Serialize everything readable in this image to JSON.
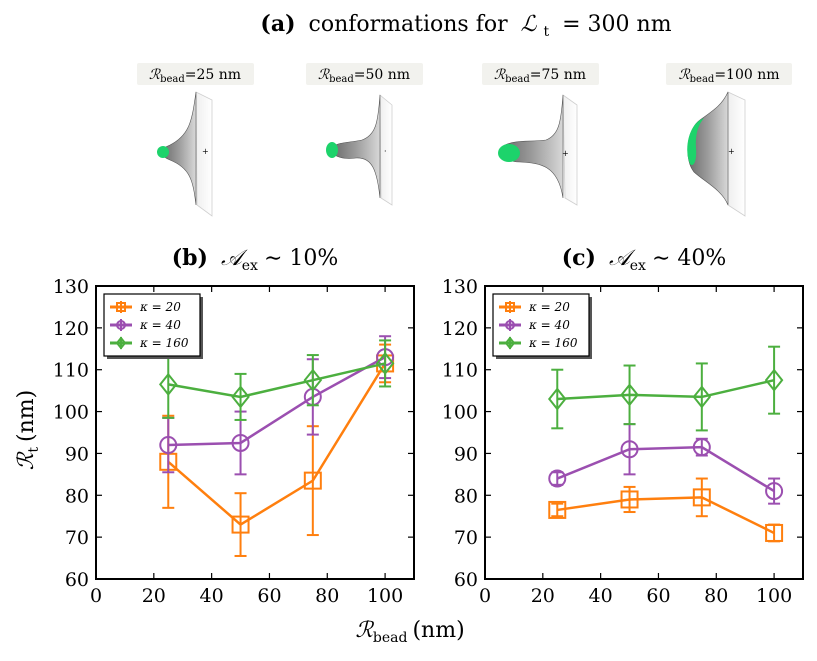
{
  "figure": {
    "panel_a": {
      "title_bold": "(a)",
      "title_rest": "conformations for",
      "title_math": "ℒ",
      "title_sub": "t",
      "title_value": "= 300 nm",
      "conformations": [
        {
          "label": "ℛ",
          "sub": "bead",
          "value": "=25 nm"
        },
        {
          "label": "ℛ",
          "sub": "bead",
          "value": "=50 nm"
        },
        {
          "label": "ℛ",
          "sub": "bead",
          "value": "=75 nm"
        },
        {
          "label": "ℛ",
          "sub": "bead",
          "value": "=100 nm"
        }
      ]
    },
    "ylabel_main": "ℛ",
    "ylabel_sub": "t",
    "ylabel_unit": "(nm)",
    "xlabel_main": "ℛ",
    "xlabel_sub": "bead",
    "xlabel_unit": "(nm)"
  },
  "colors": {
    "k20": "#ff7f0e",
    "k40": "#9b4fb0",
    "k160": "#4caf3f",
    "green_cap": "#1dd36b"
  },
  "chart_data": [
    {
      "type": "line",
      "panel": "b",
      "title_bold": "(b)",
      "title_math": "𝒜",
      "title_sub": "ex",
      "title_value": "∼ 10%",
      "xlim": [
        0,
        110
      ],
      "ylim": [
        60,
        130
      ],
      "xticks": [
        0,
        20,
        40,
        60,
        80,
        100
      ],
      "yticks": [
        60,
        70,
        80,
        90,
        100,
        110,
        120,
        130
      ],
      "legend": "top-left",
      "series": [
        {
          "name": "κ = 20",
          "marker": "square",
          "color": "#ff7f0e",
          "x": [
            25,
            50,
            75,
            100
          ],
          "y": [
            88,
            73,
            83.5,
            111.5
          ],
          "err": [
            11,
            7.5,
            13,
            4.5
          ]
        },
        {
          "name": "κ = 40",
          "marker": "circle",
          "color": "#9b4fb0",
          "x": [
            25,
            50,
            75,
            100
          ],
          "y": [
            92,
            92.5,
            103.5,
            113
          ],
          "err": [
            6.5,
            7.5,
            9,
            5
          ]
        },
        {
          "name": "κ = 160",
          "marker": "diamond",
          "color": "#4caf3f",
          "x": [
            25,
            50,
            75,
            100
          ],
          "y": [
            106.5,
            103.5,
            107.5,
            111.5
          ],
          "err": [
            8,
            5.5,
            6,
            5.5
          ]
        }
      ]
    },
    {
      "type": "line",
      "panel": "c",
      "title_bold": "(c)",
      "title_math": "𝒜",
      "title_sub": "ex",
      "title_value": "∼ 40%",
      "xlim": [
        0,
        110
      ],
      "ylim": [
        60,
        130
      ],
      "xticks": [
        0,
        20,
        40,
        60,
        80,
        100
      ],
      "yticks": [
        60,
        70,
        80,
        90,
        100,
        110,
        120,
        130
      ],
      "legend": "top-left",
      "series": [
        {
          "name": "κ = 20",
          "marker": "square",
          "color": "#ff7f0e",
          "x": [
            25,
            50,
            75,
            100
          ],
          "y": [
            76.5,
            79,
            79.5,
            71
          ],
          "err": [
            1.5,
            3,
            4.5,
            2
          ]
        },
        {
          "name": "κ = 40",
          "marker": "circle",
          "color": "#9b4fb0",
          "x": [
            25,
            50,
            75,
            100
          ],
          "y": [
            84,
            91,
            91.5,
            81
          ],
          "err": [
            1.5,
            6,
            2,
            3
          ]
        },
        {
          "name": "κ = 160",
          "marker": "diamond",
          "color": "#4caf3f",
          "x": [
            25,
            50,
            75,
            100
          ],
          "y": [
            103,
            104,
            103.5,
            107.5
          ],
          "err": [
            7,
            7,
            8,
            8
          ]
        }
      ]
    }
  ]
}
